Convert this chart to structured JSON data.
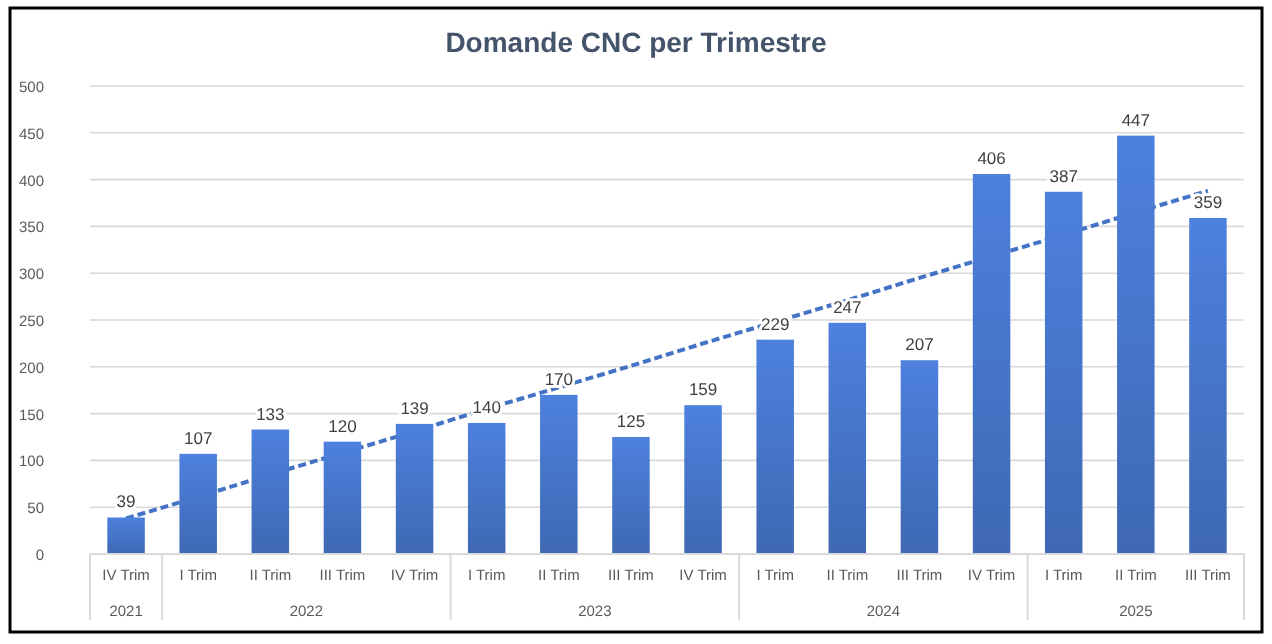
{
  "chart_data": {
    "type": "bar",
    "title": "Domande CNC per Trimestre",
    "categories": [
      "IV Trim",
      "I Trim",
      "II Trim",
      "III Trim",
      "IV Trim",
      "I Trim",
      "II Trim",
      "III Trim",
      "IV Trim",
      "I Trim",
      "II Trim",
      "III Trim",
      "IV Trim",
      "I Trim",
      "II Trim",
      "III Trim"
    ],
    "series": [
      {
        "color": "#4472c4",
        "values": [
          39,
          107,
          133,
          120,
          139,
          140,
          170,
          125,
          159,
          229,
          247,
          207,
          406,
          387,
          447,
          359
        ],
        "value_labels": [
          "39",
          "107",
          "133",
          "120",
          "139",
          "140",
          "170",
          "125",
          "159",
          "229",
          "247",
          "207",
          "406",
          "387",
          "447",
          "359"
        ]
      },
      {
        "type": "line",
        "color": "#4472c4",
        "line_style": "dashed",
        "values": [
          38,
          61,
          85,
          108,
          131,
          155,
          178,
          201,
          225,
          248,
          271,
          295,
          318,
          341,
          365,
          388
        ]
      }
    ],
    "annotations": [
      "2021",
      "2022",
      "2023",
      "2024",
      "2025"
    ],
    "ylim": [
      0,
      500
    ],
    "yticks": [
      0,
      50,
      100,
      150,
      200,
      250,
      300,
      350,
      400,
      450,
      500
    ],
    "grid": "y"
  }
}
